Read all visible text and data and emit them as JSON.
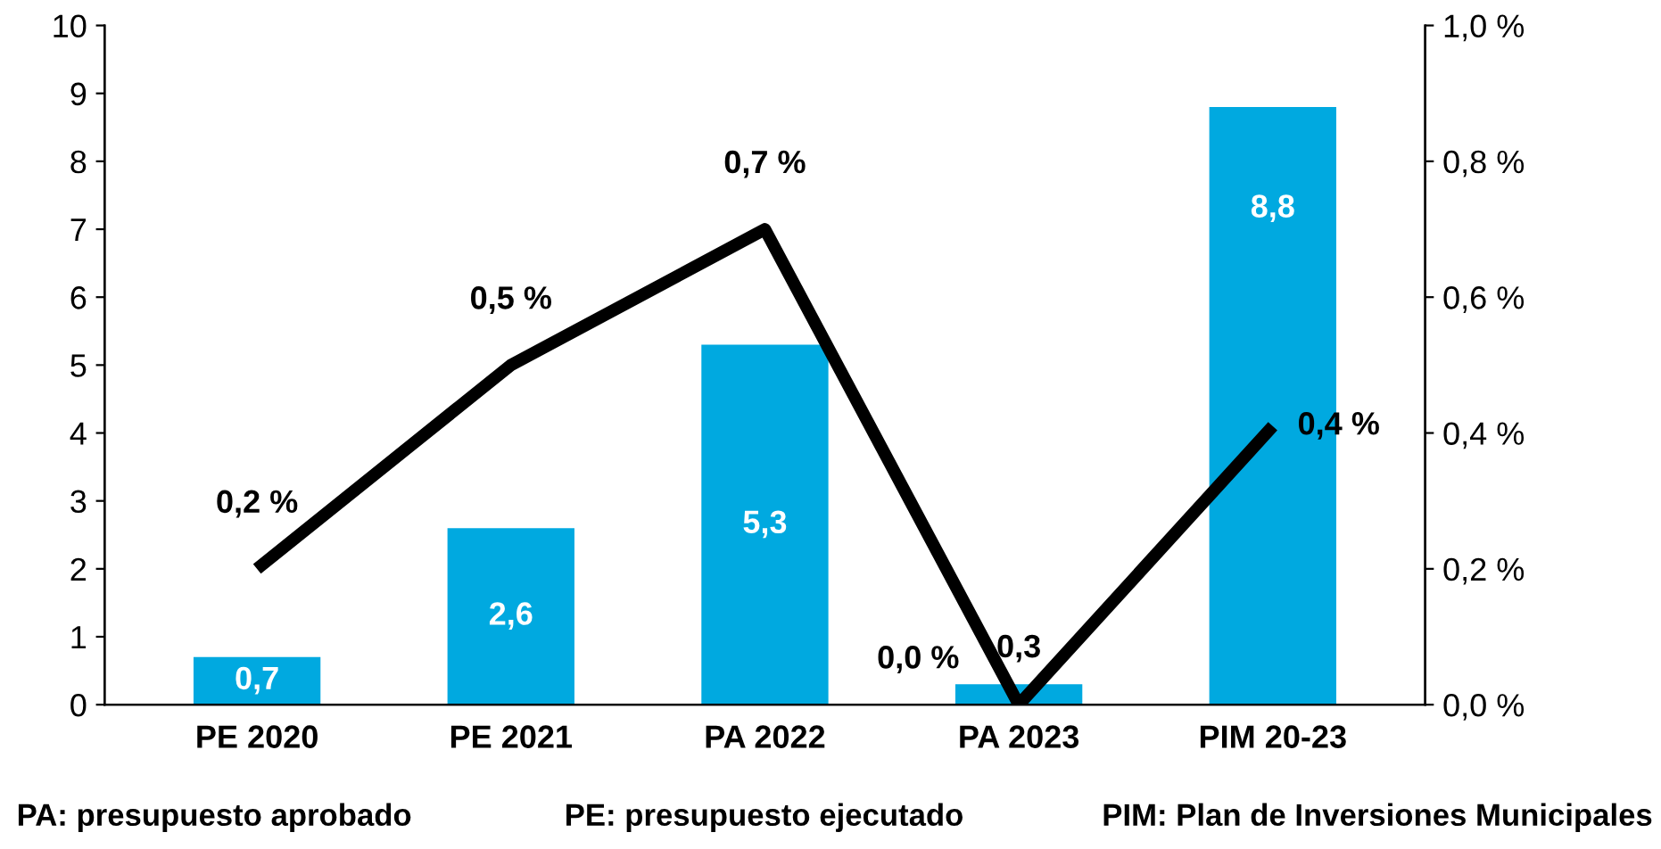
{
  "chart_data": {
    "type": "bar",
    "categories": [
      "PE 2020",
      "PE 2021",
      "PA 2022",
      "PA 2023",
      "PIM 20-23"
    ],
    "series": [
      {
        "color": "#00a9e0",
        "values": [
          0.7,
          2.6,
          5.3,
          0.3,
          8.8
        ],
        "value_labels": [
          "0,7",
          "2,6",
          "5,3",
          "0,3",
          "8,8"
        ]
      },
      {
        "type": "line",
        "axis": "y2",
        "color": "#000000",
        "values": [
          0.2,
          0.5,
          0.7,
          0.0,
          0.41
        ],
        "value_labels": [
          "0,2 %",
          "0,5 %",
          "0,7 %",
          "0,0 %",
          "0,4 %"
        ]
      }
    ],
    "ylim": [
      0,
      10
    ],
    "yticks": [
      0,
      1,
      2,
      3,
      4,
      5,
      6,
      7,
      8,
      9,
      10
    ],
    "y2lim": [
      0,
      1
    ],
    "y2ticks": [
      {
        "value": 0,
        "label": "0,0 %"
      },
      {
        "value": 0.2,
        "label": "0,2 %"
      },
      {
        "value": 0.4,
        "label": "0,4 %"
      },
      {
        "value": 0.6,
        "label": "0,6 %"
      },
      {
        "value": 0.8,
        "label": "0,8 %"
      },
      {
        "value": 1.0,
        "label": "1,0 %"
      }
    ],
    "line_style": "solid",
    "annotations": [
      "PA: presupuesto aprobado",
      "PE: presupuesto ejecutado",
      "PIM: Plan de Inversiones Municipales"
    ]
  }
}
